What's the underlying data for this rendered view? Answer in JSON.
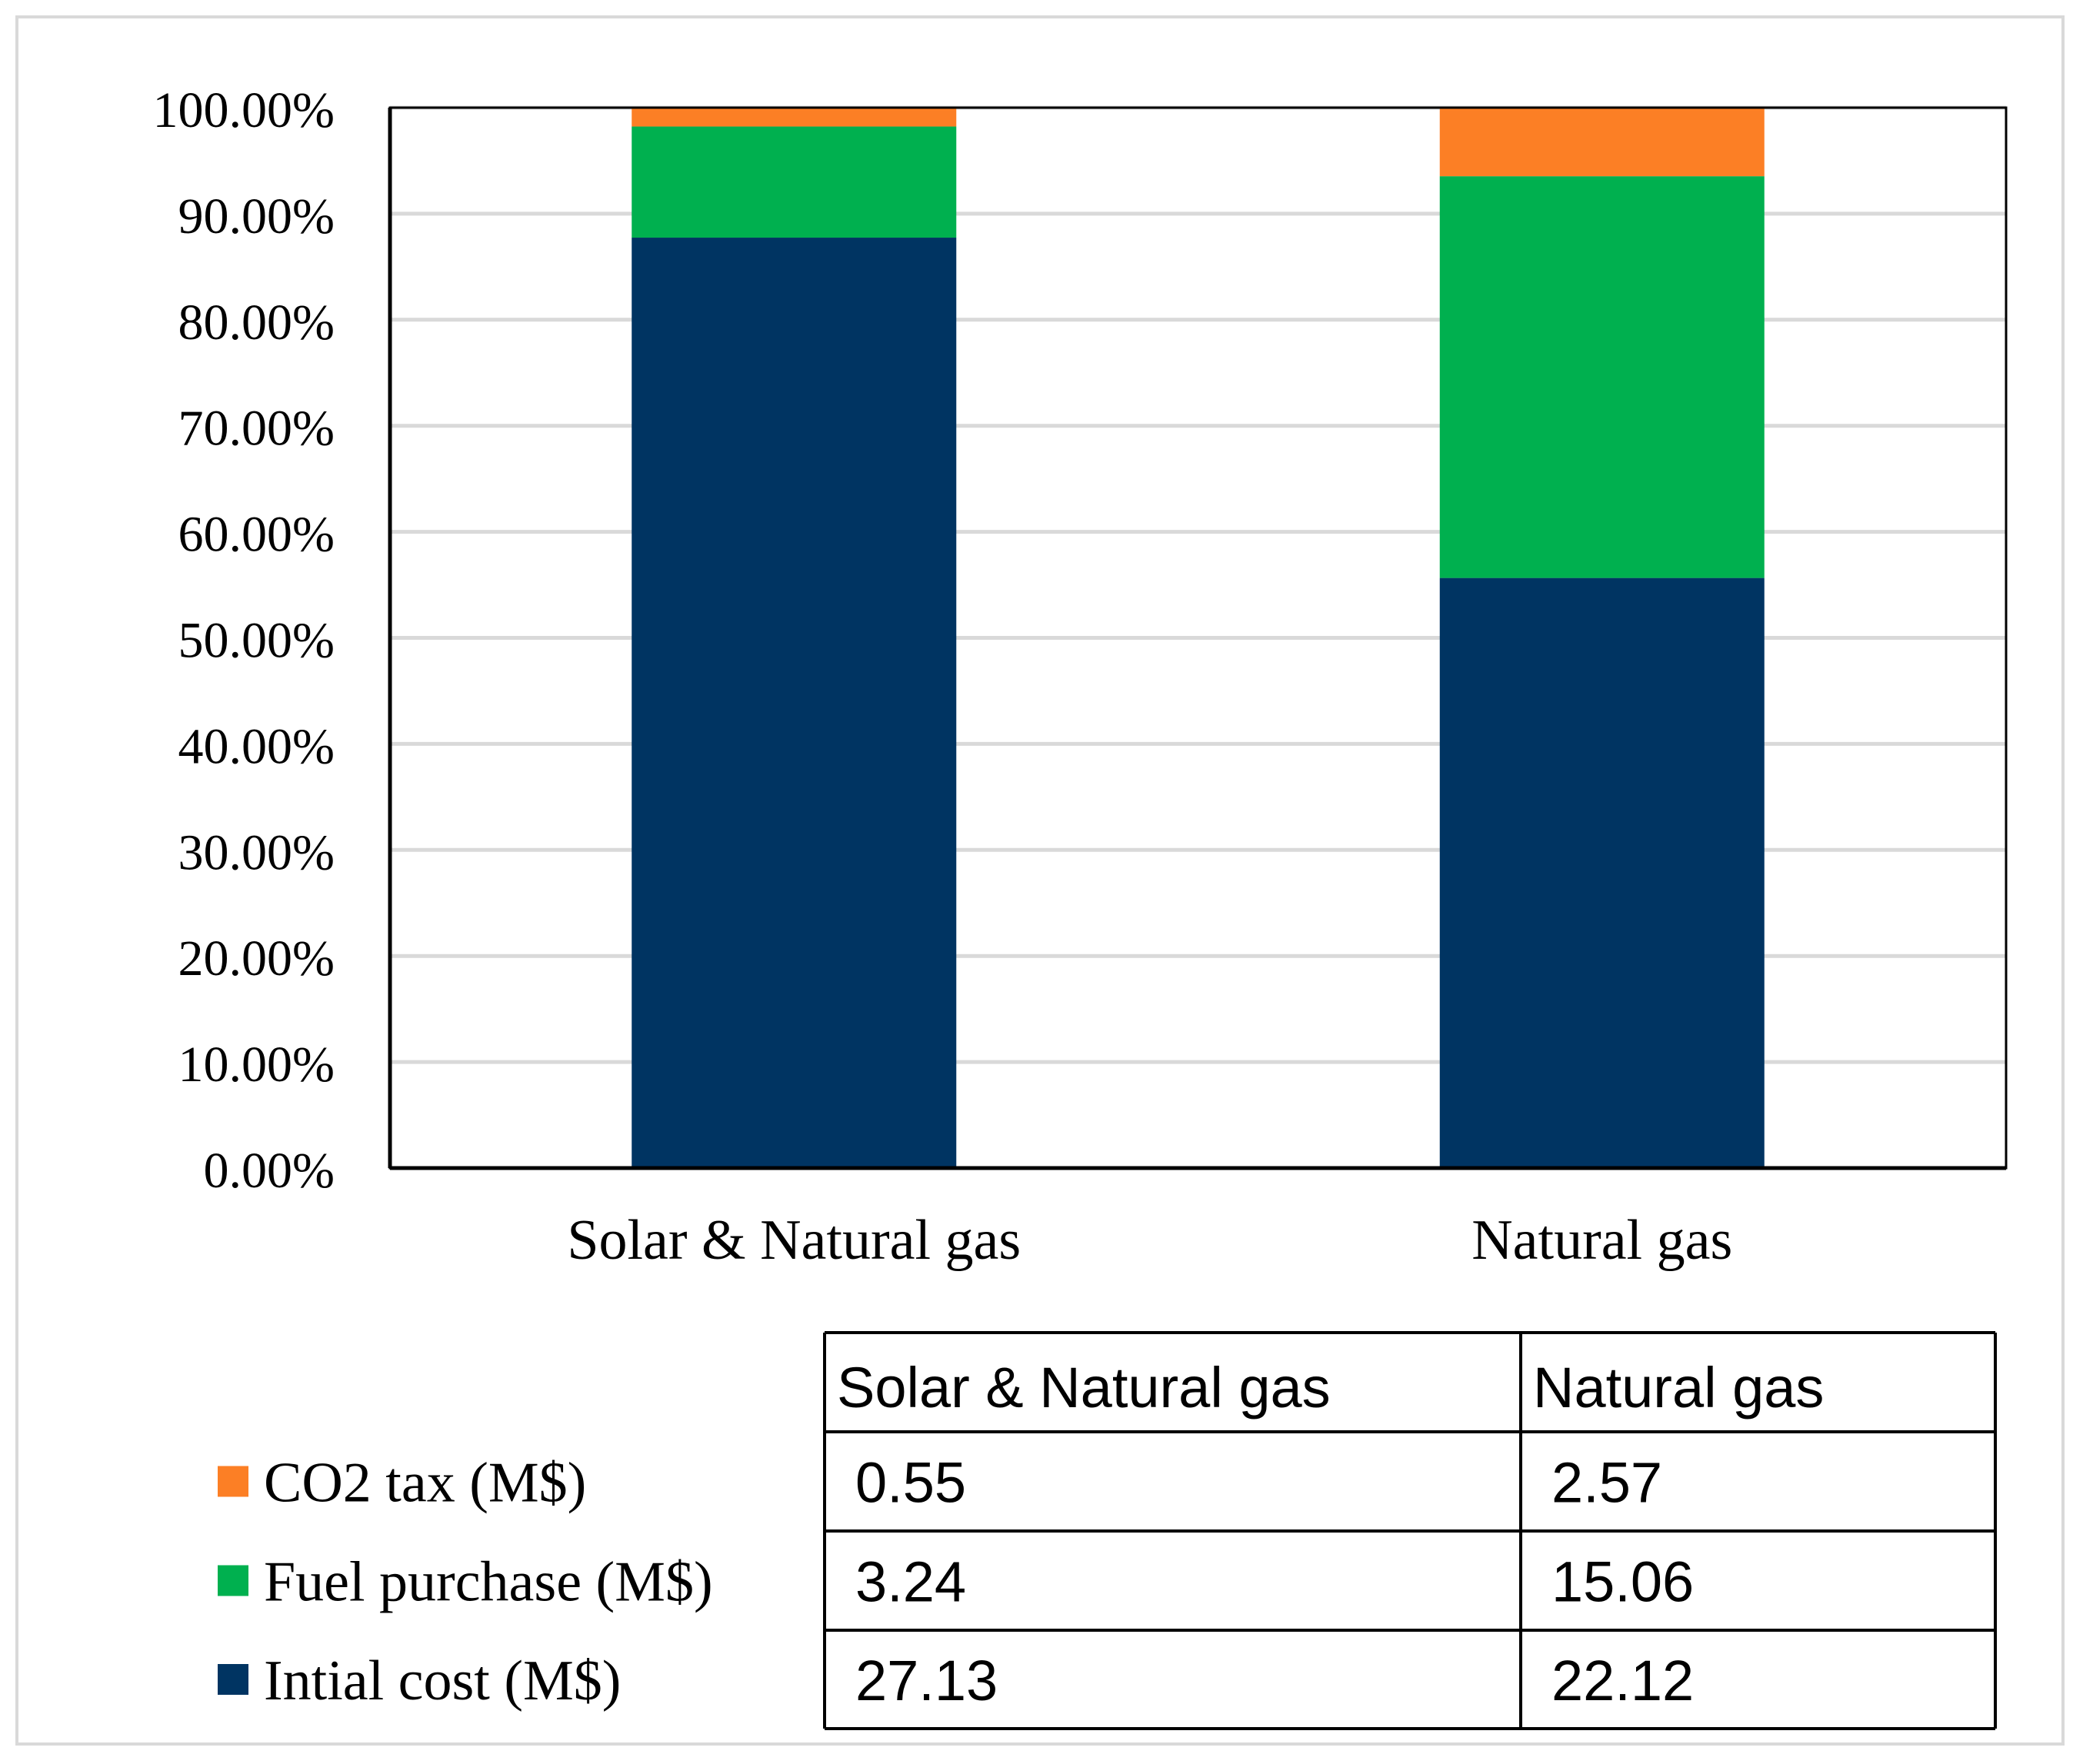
{
  "chart_data": {
    "type": "bar",
    "stacked": true,
    "normalized": true,
    "title": "",
    "xlabel": "",
    "ylabel": "",
    "ylim": [
      0,
      100
    ],
    "yticks": [
      "0.00%",
      "10.00%",
      "20.00%",
      "30.00%",
      "40.00%",
      "50.00%",
      "60.00%",
      "70.00%",
      "80.00%",
      "90.00%",
      "100.00%"
    ],
    "categories": [
      "Solar & Natural gas",
      "Natural gas"
    ],
    "series": [
      {
        "name": "Intial cost (M$)",
        "color": "#003462",
        "values": [
          27.13,
          22.12
        ]
      },
      {
        "name": "Fuel purchase (M$)",
        "color": "#00B04F",
        "values": [
          3.24,
          15.06
        ]
      },
      {
        "name": "CO2 tax (M$)",
        "color": "#FC7F25",
        "values": [
          0.55,
          2.57
        ]
      }
    ],
    "legend_order": [
      "CO2 tax (M$)",
      "Fuel purchase (M$)",
      "Intial cost (M$)"
    ],
    "data_table": {
      "headers": [
        "Solar & Natural gas",
        "Natural gas"
      ],
      "rows": [
        {
          "series": "CO2 tax (M$)",
          "cells": [
            "0.55",
            "2.57"
          ]
        },
        {
          "series": "Fuel purchase (M$)",
          "cells": [
            "3.24",
            "15.06"
          ]
        },
        {
          "series": "Intial cost (M$)",
          "cells": [
            "27.13",
            "22.12"
          ]
        }
      ]
    },
    "grid": true,
    "legend_position": "bottom-left"
  }
}
